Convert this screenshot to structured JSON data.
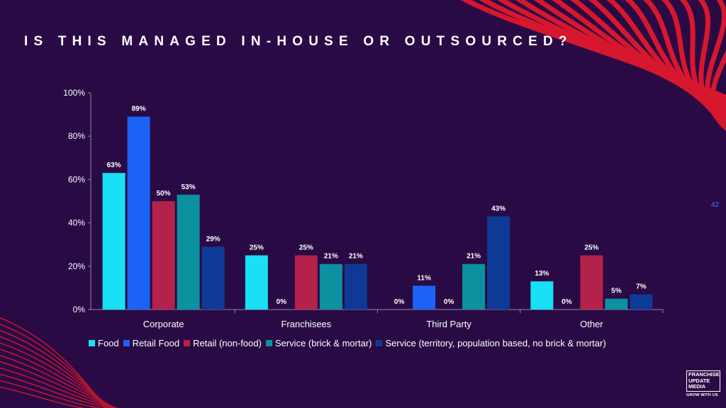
{
  "title": "IS THIS MANAGED IN-HOUSE OR OUTSOURCED?",
  "page_number": "42",
  "logo": {
    "lines": [
      "FRANCHISE",
      "UPDATE",
      "MEDIA"
    ],
    "tagline": "GROW WITH US"
  },
  "colors": {
    "background": "#2a0a45",
    "decor_red": "#e0182c",
    "Food": "#19e0f5",
    "Retail Food": "#1a63f5",
    "Retail (non-food)": "#b4214a",
    "Service (brick & mortar)": "#0b919f",
    "Service (territory, population based, no brick & mortar)": "#0e3a95"
  },
  "chart_data": {
    "type": "bar",
    "categories": [
      "Corporate",
      "Franchisees",
      "Third Party",
      "Other"
    ],
    "series": [
      {
        "name": "Food",
        "values": [
          63,
          25,
          0,
          13
        ],
        "labels": [
          "63%",
          "25%",
          "0%",
          "13%"
        ]
      },
      {
        "name": "Retail Food",
        "values": [
          89,
          0,
          11,
          0
        ],
        "labels": [
          "89%",
          "0%",
          "11%",
          "0%"
        ]
      },
      {
        "name": "Retail (non-food)",
        "values": [
          50,
          25,
          0,
          25
        ],
        "labels": [
          "50%",
          "25%",
          "0%",
          "25%"
        ]
      },
      {
        "name": "Service (brick & mortar)",
        "values": [
          53,
          21,
          21,
          5
        ],
        "labels": [
          "53%",
          "21%",
          "21%",
          "5%"
        ]
      },
      {
        "name": "Service (territory, population based, no brick & mortar)",
        "values": [
          29,
          21,
          43,
          7
        ],
        "labels": [
          "29%",
          "21%",
          "43%",
          "7%"
        ]
      }
    ],
    "y_ticks": [
      "0%",
      "20%",
      "40%",
      "60%",
      "80%",
      "100%"
    ],
    "ylim": [
      0,
      100
    ],
    "grid": false,
    "legend_position": "bottom"
  }
}
